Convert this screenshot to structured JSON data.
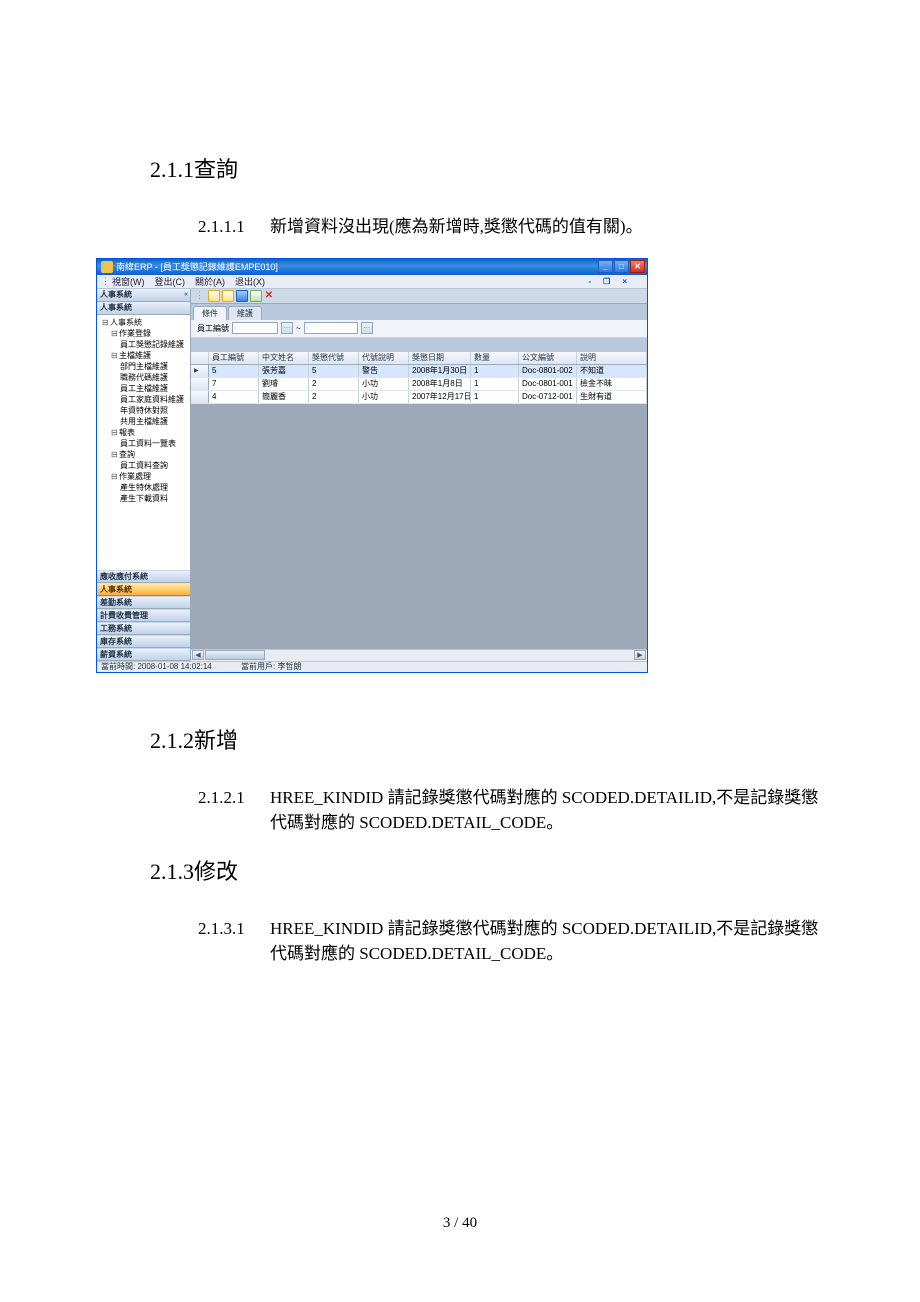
{
  "doc": {
    "h211_num": "2.1.1",
    "h211_title": "查詢",
    "h2111_num": "2.1.1.1",
    "h2111_txt": "新增資料沒出現(應為新增時,獎懲代碼的值有關)。",
    "h212_num": "2.1.2",
    "h212_title": "新增",
    "h2121_num": "2.1.2.1",
    "h2121_txt": "HREE_KINDID 請記錄獎懲代碼對應的 SCODED.DETAILID,不是記錄獎懲代碼對應的 SCODED.DETAIL_CODE。",
    "h213_num": "2.1.3",
    "h213_title": "修改",
    "h2131_num": "2.1.3.1",
    "h2131_txt": "HREE_KINDID 請記錄獎懲代碼對應的 SCODED.DETAILID,不是記錄獎懲代碼對應的 SCODED.DETAIL_CODE。",
    "page": "3  /  40"
  },
  "erp": {
    "title": "南緯ERP - [員工獎懲記錄維護EMPE010]",
    "menu": {
      "window": "視窗(W)",
      "logout": "登出(C)",
      "about": "關於(A)",
      "exit": "退出(X)"
    },
    "sidebar": {
      "head": "人事系統",
      "active": "人事系統",
      "stack": [
        "應收應付系統",
        "人事系統",
        "差勤系統",
        "計費收費管理",
        "工務系統",
        "庫存系統",
        "薪資系統"
      ],
      "tree": {
        "root": "人事系統",
        "n1": "作業登錄",
        "n1_1": "員工獎懲記錄維護",
        "n2": "主檔維護",
        "n2_1": "部門主檔維護",
        "n2_2": "職務代碼維護",
        "n2_3": "員工主檔維護",
        "n2_4": "員工家庭資料維護",
        "n2_5": "年資特休對照",
        "n2_6": "共用主檔維護",
        "n3": "報表",
        "n3_1": "員工資料一覽表",
        "n4": "查詢",
        "n4_1": "員工資料查詢",
        "n5": "作業處理",
        "n5_1": "產生特休處理",
        "n5_2": "產生下載資料"
      }
    },
    "tabs": {
      "t1": "條件",
      "t2": "維護"
    },
    "form": {
      "label": "員工編號",
      "sep": "~"
    },
    "grid": {
      "headers": [
        "員工編號",
        "中文姓名",
        "獎懲代號",
        "代號說明",
        "獎懲日期",
        "數量",
        "公文編號",
        "說明"
      ],
      "rows": [
        [
          "5",
          "張芳嘉",
          "5",
          "警告",
          "2008年1月30日",
          "1",
          "Doc-0801-002",
          "不知道"
        ],
        [
          "7",
          "劉璿",
          "2",
          "小功",
          "2008年1月8日",
          "1",
          "Doc-0801-001",
          "檢金不昧"
        ],
        [
          "4",
          "簡麗香",
          "2",
          "小功",
          "2007年12月17日",
          "1",
          "Doc-0712-001",
          "生財有道"
        ]
      ]
    },
    "status": {
      "left": "當前時間: 2008-01-08 14:02:14",
      "center": "當前用戶: 李哲朗"
    }
  }
}
